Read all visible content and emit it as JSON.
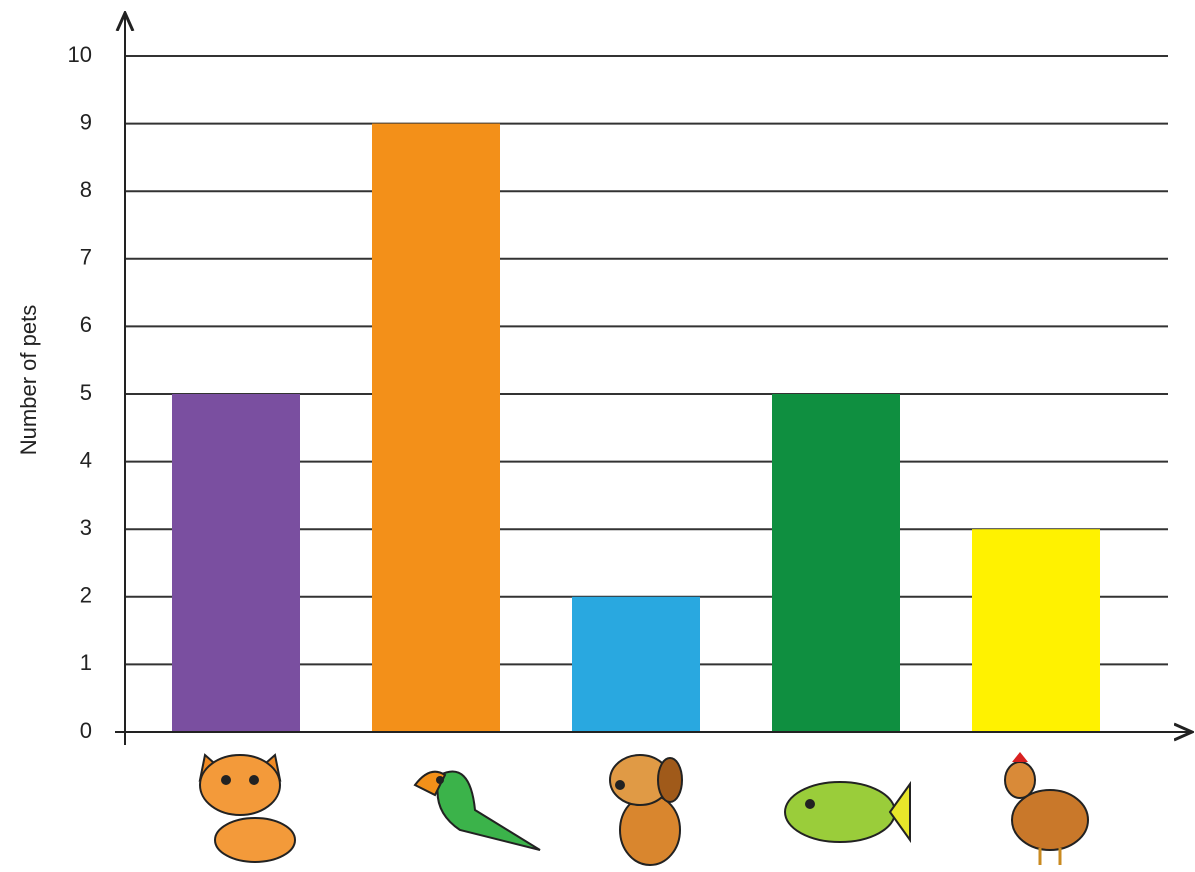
{
  "chart_data": {
    "type": "bar",
    "y_label": "Number of pets",
    "categories": [
      null,
      null,
      null,
      null,
      null
    ],
    "values": [
      5,
      9,
      2,
      5,
      3
    ],
    "colors": [
      "#7a4fa0",
      "#f39019",
      "#29a8e0",
      "#0f8f40",
      "#fff200"
    ],
    "ylim": [
      0,
      10
    ],
    "yticks": [
      0,
      1,
      2,
      3,
      4,
      5,
      6,
      7,
      8,
      9,
      10
    ],
    "grid": true
  }
}
